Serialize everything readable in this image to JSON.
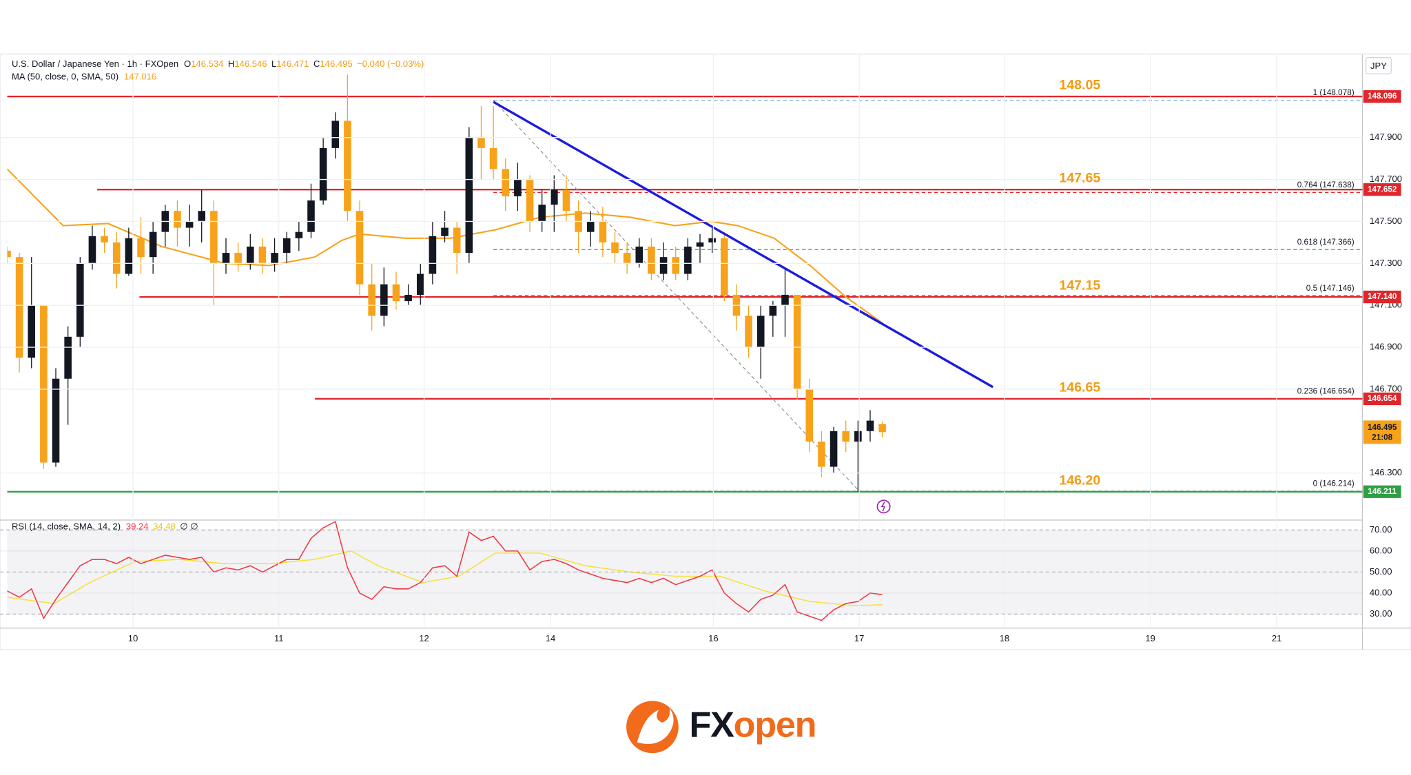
{
  "chart_data": {
    "type": "candlestick",
    "title": "U.S. Dollar / Japanese Yen · 1h · FXOpen",
    "ohlc_labels": [
      "O",
      "H",
      "L",
      "C"
    ],
    "change": "−0.040 (−0.03%)",
    "currency": "JPY",
    "up_color": "#131722",
    "down_color": "#f7a21b",
    "grid": true,
    "x": [
      0,
      2,
      4,
      6,
      8,
      10,
      12,
      14,
      16,
      18,
      20,
      22,
      24,
      26,
      28,
      30,
      32,
      34,
      36,
      38,
      40,
      42,
      44,
      46,
      48,
      50,
      52,
      54,
      56,
      58,
      60,
      62,
      64,
      66,
      68,
      70,
      72,
      74,
      76,
      78,
      80,
      82,
      84,
      86,
      88,
      90,
      92,
      94,
      96,
      98,
      100,
      102,
      104,
      106,
      108,
      110,
      112,
      114,
      116,
      118,
      120,
      122,
      124,
      126,
      128,
      130,
      132,
      134,
      136,
      138,
      140,
      142,
      144
    ],
    "open": [
      147.36,
      147.33,
      146.85,
      147.1,
      146.35,
      146.75,
      146.95,
      147.3,
      147.43,
      147.4,
      147.25,
      147.42,
      147.33,
      147.45,
      147.55,
      147.47,
      147.5,
      147.55,
      147.3,
      147.35,
      147.3,
      147.38,
      147.3,
      147.35,
      147.42,
      147.45,
      147.6,
      147.85,
      147.98,
      147.55,
      147.2,
      147.05,
      147.2,
      147.12,
      147.15,
      147.25,
      147.43,
      147.47,
      147.35,
      147.9,
      147.85,
      147.75,
      147.62,
      147.7,
      147.5,
      147.58,
      147.65,
      147.55,
      147.45,
      147.5,
      147.4,
      147.35,
      147.3,
      147.38,
      147.25,
      147.33,
      147.25,
      147.38,
      147.4,
      147.42,
      147.15,
      147.05,
      146.9,
      147.05,
      147.1,
      147.15,
      146.7,
      146.45,
      146.33,
      146.5,
      146.45,
      146.5,
      146.534
    ],
    "high": [
      147.38,
      147.35,
      147.33,
      147.1,
      146.8,
      147.0,
      147.33,
      147.48,
      147.47,
      147.45,
      147.47,
      147.52,
      147.5,
      147.58,
      147.6,
      147.58,
      147.65,
      147.6,
      147.42,
      147.4,
      147.44,
      147.42,
      147.42,
      147.45,
      147.5,
      147.68,
      147.9,
      148.02,
      148.2,
      147.6,
      147.3,
      147.28,
      147.26,
      147.2,
      147.3,
      147.5,
      147.55,
      147.5,
      147.95,
      148.05,
      148.05,
      147.8,
      147.78,
      147.72,
      147.65,
      147.72,
      147.72,
      147.6,
      147.55,
      147.57,
      147.45,
      147.4,
      147.42,
      147.42,
      147.4,
      147.38,
      147.42,
      147.44,
      147.48,
      147.45,
      147.2,
      147.1,
      147.1,
      147.12,
      147.28,
      147.15,
      146.75,
      146.5,
      146.52,
      146.55,
      146.55,
      146.6,
      146.546
    ],
    "low": [
      147.3,
      146.78,
      146.8,
      146.32,
      146.33,
      146.53,
      146.9,
      147.27,
      147.35,
      147.18,
      147.24,
      147.25,
      147.25,
      147.38,
      147.38,
      147.38,
      147.4,
      147.1,
      147.25,
      147.26,
      147.27,
      147.25,
      147.26,
      147.3,
      147.36,
      147.42,
      147.58,
      147.8,
      147.5,
      147.15,
      146.98,
      147.0,
      147.08,
      147.1,
      147.1,
      147.2,
      147.4,
      147.25,
      147.3,
      147.7,
      147.7,
      147.55,
      147.55,
      147.45,
      147.45,
      147.45,
      147.5,
      147.35,
      147.38,
      147.33,
      147.3,
      147.25,
      147.28,
      147.22,
      147.22,
      147.22,
      147.22,
      147.3,
      147.35,
      147.12,
      146.98,
      146.85,
      146.75,
      146.95,
      146.95,
      146.65,
      146.4,
      146.28,
      146.3,
      146.4,
      146.21,
      146.45,
      146.471
    ],
    "close": [
      147.33,
      146.85,
      147.1,
      146.35,
      146.75,
      146.95,
      147.3,
      147.43,
      147.4,
      147.25,
      147.42,
      147.33,
      147.45,
      147.55,
      147.47,
      147.5,
      147.55,
      147.3,
      147.35,
      147.3,
      147.38,
      147.3,
      147.35,
      147.42,
      147.45,
      147.6,
      147.85,
      147.98,
      147.55,
      147.2,
      147.05,
      147.2,
      147.12,
      147.15,
      147.25,
      147.43,
      147.47,
      147.35,
      147.9,
      147.85,
      147.75,
      147.62,
      147.7,
      147.5,
      147.58,
      147.65,
      147.55,
      147.45,
      147.5,
      147.4,
      147.35,
      147.3,
      147.38,
      147.25,
      147.33,
      147.25,
      147.38,
      147.4,
      147.42,
      147.15,
      147.05,
      146.9,
      147.05,
      147.1,
      147.15,
      146.7,
      146.45,
      146.33,
      146.5,
      146.45,
      146.5,
      146.55,
      146.495
    ],
    "xlim": [
      0,
      223
    ],
    "xticks": [
      {
        "value": 20.7,
        "label": "10"
      },
      {
        "value": 44.7,
        "label": "11"
      },
      {
        "value": 68.6,
        "label": "12"
      },
      {
        "value": 89.4,
        "label": "14"
      },
      {
        "value": 116.2,
        "label": "16"
      },
      {
        "value": 140.2,
        "label": "17"
      },
      {
        "value": 164.1,
        "label": "18"
      },
      {
        "value": 188.1,
        "label": "19"
      },
      {
        "value": 208.9,
        "label": "21"
      }
    ],
    "ylim": [
      146.08,
      148.29
    ],
    "yticks": [
      {
        "value": 147.9,
        "label": "147.900"
      },
      {
        "value": 147.7,
        "label": "147.700"
      },
      {
        "value": 147.5,
        "label": "147.500"
      },
      {
        "value": 147.3,
        "label": "147.300"
      },
      {
        "value": 147.1,
        "label": "147.100"
      },
      {
        "value": 146.9,
        "label": "146.900"
      },
      {
        "value": 146.7,
        "label": "146.700"
      },
      {
        "value": 146.3,
        "label": "146.300"
      }
    ],
    "ma": {
      "name": "MA (50, close, 0, SMA, 50)",
      "color": "#f7a21b",
      "x": [
        0,
        9.2,
        16.6,
        25.5,
        35.8,
        43.2,
        50.6,
        55.1,
        58,
        65.5,
        72.9,
        80.3,
        87.7,
        95.1,
        102.5,
        109.9,
        115.8,
        120.2,
        126.2,
        132.1,
        138,
        144
      ],
      "values": [
        147.75,
        147.48,
        147.49,
        147.38,
        147.3,
        147.29,
        147.33,
        147.41,
        147.44,
        147.42,
        147.42,
        147.46,
        147.52,
        147.54,
        147.52,
        147.48,
        147.5,
        147.48,
        147.42,
        147.29,
        147.14,
        147.016
      ]
    },
    "levels": [
      {
        "text": "148.05",
        "price": 148.096,
        "color": "#e0262b"
      },
      {
        "text": "147.65",
        "price": 147.652,
        "color": "#e0262b"
      },
      {
        "text": "147.15",
        "price": {
          "value": 147.14,
          "label": "147.140"
        },
        "color": "#e0262b"
      },
      {
        "text": "146.65",
        "price": 146.654,
        "color": "#e0262b"
      },
      {
        "text": "146.20",
        "price": 146.211,
        "color": "#2ea043"
      }
    ],
    "fib": [
      {
        "label": "1 (148.078)",
        "value": 148.078,
        "color": "#7fb3e0"
      },
      {
        "label": "0.764 (147.638)",
        "value": 147.638,
        "color": "#e0262b"
      },
      {
        "label": "0.618 (147.366)",
        "value": 147.366,
        "color": "#26a69a"
      },
      {
        "label": "0.5 (147.146)",
        "value": 147.146,
        "color": "#e0262b"
      },
      {
        "label": "0.236 (146.654)",
        "value": 146.654,
        "color": "#e0262b"
      },
      {
        "label": "0 (146.214)",
        "value": 146.214,
        "color": "#888888"
      }
    ],
    "fib_diagonal": {
      "x": [
        80,
        140.2
      ],
      "y": [
        148.078,
        146.214
      ],
      "color": "#999999"
    },
    "trendline": {
      "x": [
        80,
        162.2
      ],
      "y": [
        148.07,
        146.71
      ],
      "color": "#1b1be0"
    },
    "timer": "21:08",
    "rsi": {
      "name": "RSI (14, close, SMA, 14, 2)",
      "extra": "∅ ∅",
      "ylim": [
        25.5,
        74.7
      ],
      "yticks": [
        {
          "value": 70,
          "label": "70.00"
        },
        {
          "value": 60,
          "label": "60.00"
        },
        {
          "value": 50,
          "label": "50.00"
        },
        {
          "value": 40,
          "label": "40.00"
        },
        {
          "value": 30,
          "label": "30.00"
        }
      ],
      "series": [
        {
          "color": "#f23645",
          "values": [
            41,
            38,
            42,
            28,
            37,
            45,
            53,
            56,
            56,
            54,
            57,
            54,
            56,
            58,
            57,
            56,
            57,
            50,
            52,
            51,
            53,
            50,
            53,
            56,
            56,
            66,
            71,
            74,
            52,
            40,
            37,
            43,
            42,
            42,
            45,
            52,
            53,
            48,
            69,
            65,
            67,
            60,
            60,
            51,
            55,
            56,
            54,
            51,
            49,
            47,
            46,
            45,
            47,
            45,
            47,
            44,
            46,
            48,
            51,
            40,
            35,
            31,
            37,
            39,
            44,
            31,
            29,
            27,
            32,
            35,
            36,
            40,
            39.24
          ]
        },
        {
          "color": "#f5e13d",
          "x": [
            0,
            7.7,
            13.6,
            21,
            28.4,
            35.8,
            43.2,
            50.6,
            56.6,
            61,
            68.4,
            74.3,
            80.3,
            87.7,
            95.1,
            102.5,
            109.9,
            117.3,
            124.7,
            132.1,
            139.5,
            144
          ],
          "values": [
            38,
            35,
            45,
            55,
            56,
            54,
            54,
            56,
            60,
            53,
            45,
            48,
            59,
            59,
            53,
            50,
            48,
            48,
            41,
            36,
            34,
            34.48
          ]
        }
      ]
    }
  },
  "brand": {
    "fx": "FX",
    "open": "open"
  }
}
